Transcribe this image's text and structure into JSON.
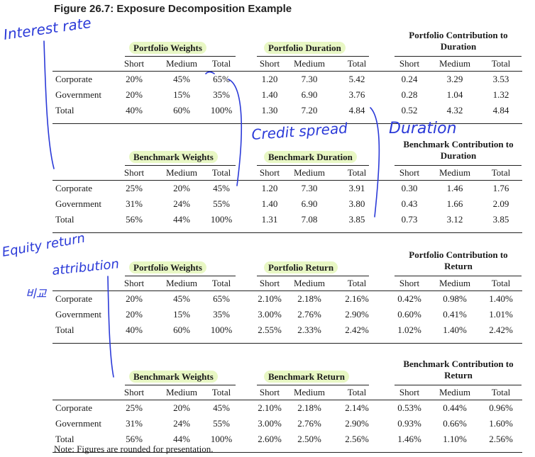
{
  "figure_title": "Figure 26.7: Exposure Decomposition Example",
  "col_labels": [
    "Short",
    "Medium",
    "Total"
  ],
  "row_labels": [
    "Corporate",
    "Government",
    "Total"
  ],
  "panels": [
    {
      "group1": "Portfolio Weights",
      "group2": "Portfolio Duration",
      "group3": "Portfolio Contribution to Duration",
      "rows": [
        [
          "20%",
          "45%",
          "65%",
          "1.20",
          "7.30",
          "5.42",
          "0.24",
          "3.29",
          "3.53"
        ],
        [
          "20%",
          "15%",
          "35%",
          "1.40",
          "6.90",
          "3.76",
          "0.28",
          "1.04",
          "1.32"
        ],
        [
          "40%",
          "60%",
          "100%",
          "1.30",
          "7.20",
          "4.84",
          "0.52",
          "4.32",
          "4.84"
        ]
      ]
    },
    {
      "group1": "Benchmark Weights",
      "group2": "Benchmark Duration",
      "group3": "Benchmark Contribution to Duration",
      "rows": [
        [
          "25%",
          "20%",
          "45%",
          "1.20",
          "7.30",
          "3.91",
          "0.30",
          "1.46",
          "1.76"
        ],
        [
          "31%",
          "24%",
          "55%",
          "1.40",
          "6.90",
          "3.80",
          "0.43",
          "1.66",
          "2.09"
        ],
        [
          "56%",
          "44%",
          "100%",
          "1.31",
          "7.08",
          "3.85",
          "0.73",
          "3.12",
          "3.85"
        ]
      ]
    },
    {
      "group1": "Portfolio Weights",
      "group2": "Portfolio Return",
      "group3": "Portfolio Contribution to Return",
      "rows": [
        [
          "20%",
          "45%",
          "65%",
          "2.10%",
          "2.18%",
          "2.16%",
          "0.42%",
          "0.98%",
          "1.40%"
        ],
        [
          "20%",
          "15%",
          "35%",
          "3.00%",
          "2.76%",
          "2.90%",
          "0.60%",
          "0.41%",
          "1.01%"
        ],
        [
          "40%",
          "60%",
          "100%",
          "2.55%",
          "2.33%",
          "2.42%",
          "1.02%",
          "1.40%",
          "2.42%"
        ]
      ]
    },
    {
      "group1": "Benchmark Weights",
      "group2": "Benchmark Return",
      "group3": "Benchmark Contribution to Return",
      "rows": [
        [
          "25%",
          "20%",
          "45%",
          "2.10%",
          "2.18%",
          "2.14%",
          "0.53%",
          "0.44%",
          "0.96%"
        ],
        [
          "31%",
          "24%",
          "55%",
          "3.00%",
          "2.76%",
          "2.90%",
          "0.93%",
          "0.66%",
          "1.60%"
        ],
        [
          "56%",
          "44%",
          "100%",
          "2.60%",
          "2.50%",
          "2.56%",
          "1.46%",
          "1.10%",
          "2.56%"
        ]
      ]
    }
  ],
  "note": "Note: Figures are rounded for presentation.",
  "handwriting": {
    "interest_rate": "Interest rate",
    "credit_spread": "Credit spread",
    "duration": "Duration",
    "equity_return": "Equity return",
    "attribution": "attribution",
    "korean_note": "비교"
  },
  "highlight_color": "#e8f7c4",
  "ink_color": "#2b3ad8"
}
